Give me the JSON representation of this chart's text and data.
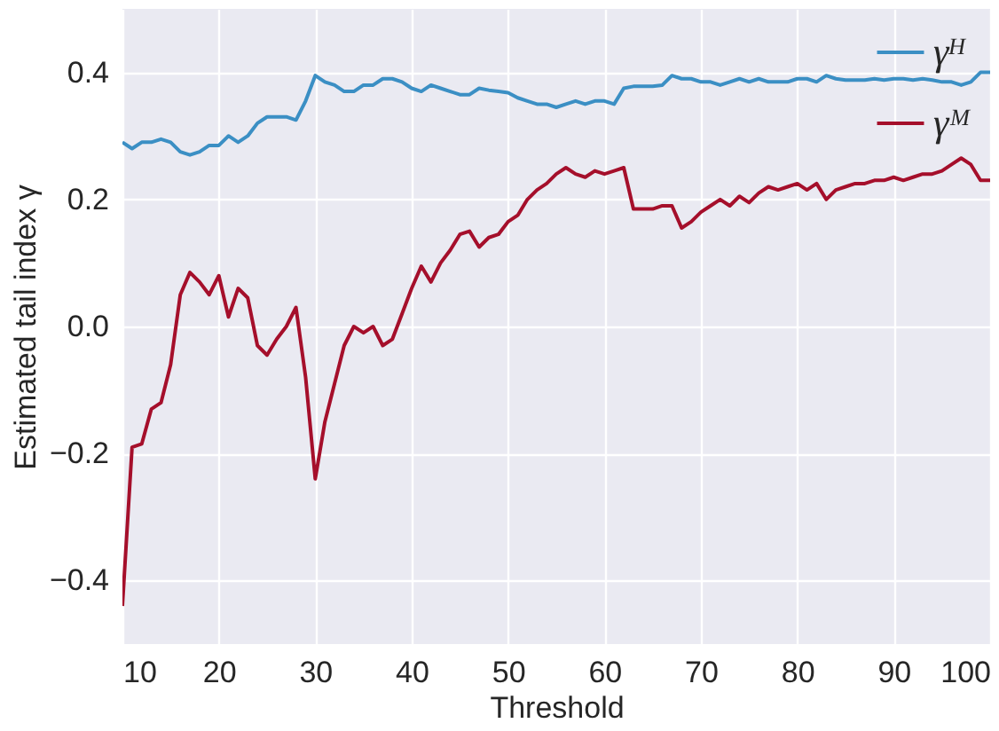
{
  "chart_data": {
    "type": "line",
    "xlabel": "Threshold",
    "ylabel": "Estimated tail index γ",
    "x": [
      10,
      11,
      12,
      13,
      14,
      15,
      16,
      17,
      18,
      19,
      20,
      21,
      22,
      23,
      24,
      25,
      26,
      27,
      28,
      29,
      30,
      31,
      32,
      33,
      34,
      35,
      36,
      37,
      38,
      39,
      40,
      41,
      42,
      43,
      44,
      45,
      46,
      47,
      48,
      49,
      50,
      51,
      52,
      53,
      54,
      55,
      56,
      57,
      58,
      59,
      60,
      61,
      62,
      63,
      64,
      65,
      66,
      67,
      68,
      69,
      70,
      71,
      72,
      73,
      74,
      75,
      76,
      77,
      78,
      79,
      80,
      81,
      82,
      83,
      84,
      85,
      86,
      87,
      88,
      89,
      90,
      91,
      92,
      93,
      94,
      95,
      96,
      97,
      98,
      99,
      100
    ],
    "series": [
      {
        "name": "γᴴ",
        "color": "#3b8fc4",
        "values": [
          0.29,
          0.28,
          0.29,
          0.29,
          0.295,
          0.29,
          0.275,
          0.27,
          0.275,
          0.285,
          0.285,
          0.3,
          0.29,
          0.3,
          0.32,
          0.33,
          0.33,
          0.33,
          0.325,
          0.355,
          0.395,
          0.385,
          0.38,
          0.37,
          0.37,
          0.38,
          0.38,
          0.39,
          0.39,
          0.385,
          0.375,
          0.37,
          0.38,
          0.375,
          0.37,
          0.365,
          0.365,
          0.375,
          0.372,
          0.37,
          0.368,
          0.36,
          0.355,
          0.35,
          0.35,
          0.345,
          0.35,
          0.355,
          0.35,
          0.355,
          0.355,
          0.35,
          0.375,
          0.378,
          0.378,
          0.378,
          0.38,
          0.395,
          0.39,
          0.39,
          0.385,
          0.385,
          0.38,
          0.385,
          0.39,
          0.385,
          0.39,
          0.385,
          0.385,
          0.385,
          0.39,
          0.39,
          0.385,
          0.395,
          0.39,
          0.388,
          0.388,
          0.388,
          0.39,
          0.388,
          0.39,
          0.39,
          0.388,
          0.39,
          0.388,
          0.385,
          0.385,
          0.38,
          0.385,
          0.4,
          0.4
        ]
      },
      {
        "name": "γᴹ",
        "color": "#a50f2b",
        "values": [
          -0.44,
          -0.19,
          -0.185,
          -0.13,
          -0.12,
          -0.06,
          0.05,
          0.085,
          0.07,
          0.05,
          0.08,
          0.015,
          0.06,
          0.045,
          -0.03,
          -0.045,
          -0.02,
          0.0,
          0.03,
          -0.08,
          -0.24,
          -0.15,
          -0.09,
          -0.03,
          0.0,
          -0.01,
          0.0,
          -0.03,
          -0.02,
          0.02,
          0.06,
          0.095,
          0.07,
          0.1,
          0.12,
          0.145,
          0.15,
          0.125,
          0.14,
          0.145,
          0.165,
          0.175,
          0.2,
          0.215,
          0.225,
          0.24,
          0.25,
          0.24,
          0.235,
          0.245,
          0.24,
          0.245,
          0.25,
          0.185,
          0.185,
          0.185,
          0.19,
          0.19,
          0.155,
          0.165,
          0.18,
          0.19,
          0.2,
          0.19,
          0.205,
          0.195,
          0.21,
          0.22,
          0.215,
          0.22,
          0.225,
          0.215,
          0.225,
          0.2,
          0.215,
          0.22,
          0.225,
          0.225,
          0.23,
          0.23,
          0.235,
          0.23,
          0.235,
          0.24,
          0.24,
          0.245,
          0.255,
          0.265,
          0.255,
          0.23,
          0.23
        ]
      }
    ],
    "xlim": [
      10,
      100
    ],
    "xticks": [
      10,
      20,
      30,
      40,
      50,
      60,
      70,
      80,
      90,
      100
    ],
    "ylim": [
      -0.5,
      0.5
    ],
    "yticks": [
      -0.4,
      -0.2,
      {
        "value": 0,
        "label": "0.0"
      },
      0.2,
      0.4
    ],
    "grid": true,
    "legend": "top right",
    "line_style": "solid",
    "marker": "none"
  }
}
